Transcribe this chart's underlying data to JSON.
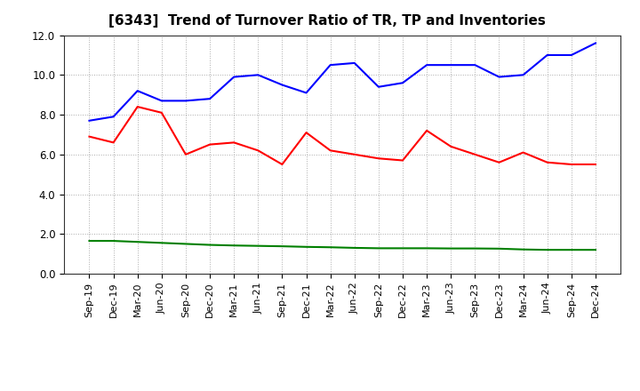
{
  "title": "[6343]  Trend of Turnover Ratio of TR, TP and Inventories",
  "x_labels": [
    "Sep-19",
    "Dec-19",
    "Mar-20",
    "Jun-20",
    "Sep-20",
    "Dec-20",
    "Mar-21",
    "Jun-21",
    "Sep-21",
    "Dec-21",
    "Mar-22",
    "Jun-22",
    "Sep-22",
    "Dec-22",
    "Mar-23",
    "Jun-23",
    "Sep-23",
    "Dec-23",
    "Mar-24",
    "Jun-24",
    "Sep-24",
    "Dec-24"
  ],
  "trade_receivables": [
    6.9,
    6.6,
    8.4,
    8.1,
    6.0,
    6.5,
    6.6,
    6.2,
    5.5,
    7.1,
    6.2,
    6.0,
    5.8,
    5.7,
    7.2,
    6.4,
    6.0,
    5.6,
    6.1,
    5.6,
    5.5,
    5.5
  ],
  "trade_payables": [
    7.7,
    7.9,
    9.2,
    8.7,
    8.7,
    8.8,
    9.9,
    10.0,
    9.5,
    9.1,
    10.5,
    10.6,
    9.4,
    9.6,
    10.5,
    10.5,
    10.5,
    9.9,
    10.0,
    11.0,
    11.0,
    11.6
  ],
  "inventories": [
    1.65,
    1.65,
    1.6,
    1.55,
    1.5,
    1.45,
    1.42,
    1.4,
    1.38,
    1.35,
    1.33,
    1.3,
    1.28,
    1.28,
    1.28,
    1.27,
    1.27,
    1.26,
    1.22,
    1.2,
    1.2,
    1.2
  ],
  "tr_color": "#ff0000",
  "tp_color": "#0000ff",
  "inv_color": "#008000",
  "ylim": [
    0.0,
    12.0
  ],
  "yticks": [
    0.0,
    2.0,
    4.0,
    6.0,
    8.0,
    10.0,
    12.0
  ],
  "background_color": "#ffffff",
  "grid_color": "#aaaaaa",
  "title_fontsize": 11,
  "legend_fontsize": 9,
  "tick_fontsize": 8,
  "ytick_fontsize": 8.5
}
